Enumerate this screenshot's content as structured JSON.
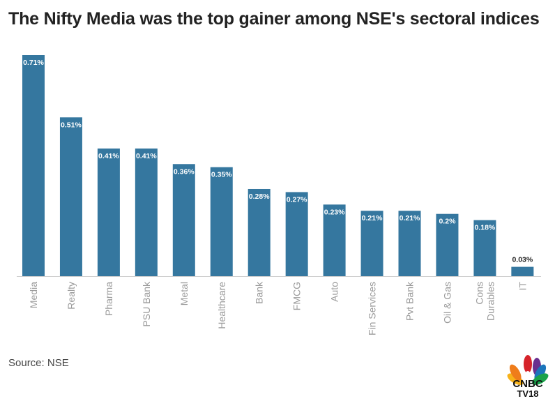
{
  "title": "The Nifty Media was the top gainer among NSE's sectoral indices",
  "source": "Source: NSE",
  "logo_text": {
    "line1": "CNBC",
    "line2": "TV18"
  },
  "colors": {
    "bar": "#35779f",
    "axis": "#cfcfcf",
    "tick": "#9a9a9a",
    "title": "#222222"
  },
  "chart_data": {
    "type": "bar",
    "title": "The Nifty Media was the top gainer among NSE's sectoral indices",
    "categories": [
      [
        "Media"
      ],
      [
        "Realty"
      ],
      [
        "Pharma"
      ],
      [
        "PSU Bank"
      ],
      [
        "Metal"
      ],
      [
        "Healthcare"
      ],
      [
        "Bank"
      ],
      [
        "FMCG"
      ],
      [
        "Auto"
      ],
      [
        "Fin Services"
      ],
      [
        "Pvt Bank"
      ],
      [
        "Oil & Gas"
      ],
      [
        "Cons",
        "Durables"
      ],
      [
        "IT"
      ]
    ],
    "values": [
      0.71,
      0.51,
      0.41,
      0.41,
      0.36,
      0.35,
      0.28,
      0.27,
      0.23,
      0.21,
      0.21,
      0.2,
      0.18,
      0.03
    ],
    "labels": [
      "0.71%",
      "0.51%",
      "0.41%",
      "0.41%",
      "0.36%",
      "0.35%",
      "0.28%",
      "0.27%",
      "0.23%",
      "0.21%",
      "0.21%",
      "0.2%",
      "0.18%",
      "0.03%"
    ],
    "xlabel": "",
    "ylabel": "",
    "ylim": [
      0,
      0.71
    ],
    "grid": false,
    "legend": "none"
  }
}
